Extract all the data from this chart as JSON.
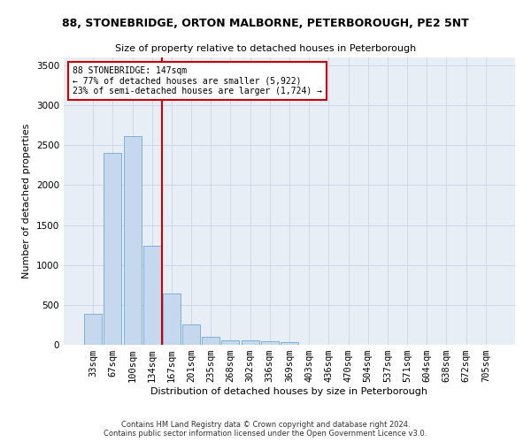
{
  "title": "88, STONEBRIDGE, ORTON MALBORNE, PETERBOROUGH, PE2 5NT",
  "subtitle": "Size of property relative to detached houses in Peterborough",
  "xlabel": "Distribution of detached houses by size in Peterborough",
  "ylabel": "Number of detached properties",
  "footer_line1": "Contains HM Land Registry data © Crown copyright and database right 2024.",
  "footer_line2": "Contains public sector information licensed under the Open Government Licence v3.0.",
  "property_label": "88 STONEBRIDGE: 147sqm",
  "annotation_line1": "← 77% of detached houses are smaller (5,922)",
  "annotation_line2": "23% of semi-detached houses are larger (1,724) →",
  "bar_color": "#c5d8ed",
  "bar_edge_color": "#5b9bd5",
  "vline_color": "#cc0000",
  "annotation_box_color": "#cc0000",
  "grid_color": "#d0d8e8",
  "bg_color": "#e8eef6",
  "categories": [
    "33sqm",
    "67sqm",
    "100sqm",
    "134sqm",
    "167sqm",
    "201sqm",
    "235sqm",
    "268sqm",
    "302sqm",
    "336sqm",
    "369sqm",
    "403sqm",
    "436sqm",
    "470sqm",
    "504sqm",
    "537sqm",
    "571sqm",
    "604sqm",
    "638sqm",
    "672sqm",
    "705sqm"
  ],
  "values": [
    390,
    2400,
    2610,
    1240,
    640,
    260,
    95,
    60,
    60,
    45,
    30,
    0,
    0,
    0,
    0,
    0,
    0,
    0,
    0,
    0,
    0
  ],
  "ylim": [
    0,
    3600
  ],
  "yticks": [
    0,
    500,
    1000,
    1500,
    2000,
    2500,
    3000,
    3500
  ],
  "vline_x": 3.5,
  "title_fontsize": 9,
  "subtitle_fontsize": 8,
  "ylabel_fontsize": 8,
  "xlabel_fontsize": 8,
  "tick_fontsize": 7.5,
  "annotation_fontsize": 7,
  "footer_fontsize": 6
}
